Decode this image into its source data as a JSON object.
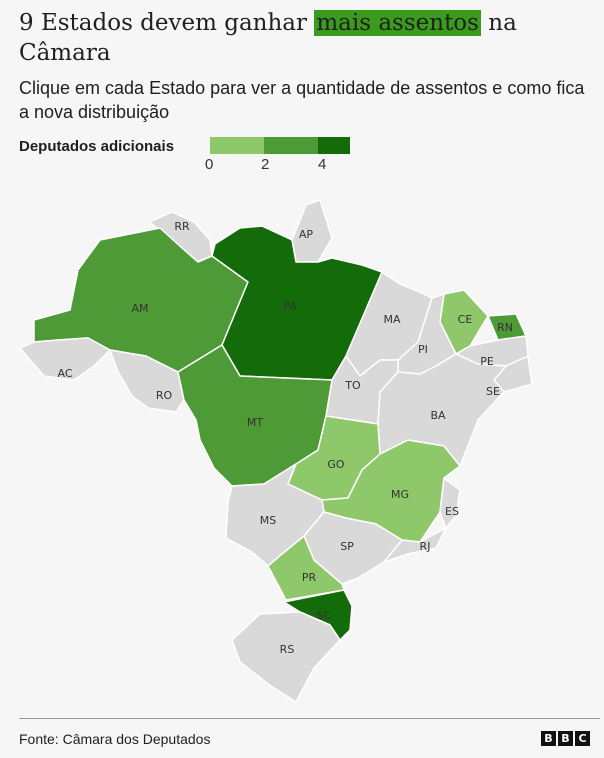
{
  "title": {
    "before": "9 Estados devem ganhar ",
    "highlight": "mais assentos",
    "after": " na Câmara"
  },
  "subtitle": "Clique em cada Estado para ver a quantidade de assentos e como fica a nova distribuição",
  "legend": {
    "label": "Deputados adicionais",
    "ticks": [
      "0",
      "2",
      "4"
    ],
    "colors": [
      "#8fc76b",
      "#4e9a36",
      "#146b0a"
    ]
  },
  "colors": {
    "no_change": "#d9d9d9",
    "highlight": "#3a9b1d"
  },
  "states": [
    {
      "code": "RR",
      "additional": 0
    },
    {
      "code": "AP",
      "additional": 0
    },
    {
      "code": "AM",
      "additional": 2
    },
    {
      "code": "PA",
      "additional": 4
    },
    {
      "code": "MA",
      "additional": 0
    },
    {
      "code": "CE",
      "additional": 1
    },
    {
      "code": "RN",
      "additional": 2
    },
    {
      "code": "PI",
      "additional": 0
    },
    {
      "code": "PE",
      "additional": 0
    },
    {
      "code": "AC",
      "additional": 0
    },
    {
      "code": "RO",
      "additional": 0
    },
    {
      "code": "TO",
      "additional": 0
    },
    {
      "code": "SE",
      "additional": 0
    },
    {
      "code": "BA",
      "additional": 0
    },
    {
      "code": "MT",
      "additional": 2
    },
    {
      "code": "GO",
      "additional": 1
    },
    {
      "code": "MG",
      "additional": 1
    },
    {
      "code": "MS",
      "additional": 0
    },
    {
      "code": "ES",
      "additional": 0
    },
    {
      "code": "SP",
      "additional": 0
    },
    {
      "code": "RJ",
      "additional": 0
    },
    {
      "code": "PR",
      "additional": 1
    },
    {
      "code": "SC",
      "additional": 4
    },
    {
      "code": "RS",
      "additional": 0
    }
  ],
  "source": "Fonte: Câmara dos Deputados",
  "logo": [
    "B",
    "B",
    "C"
  ]
}
